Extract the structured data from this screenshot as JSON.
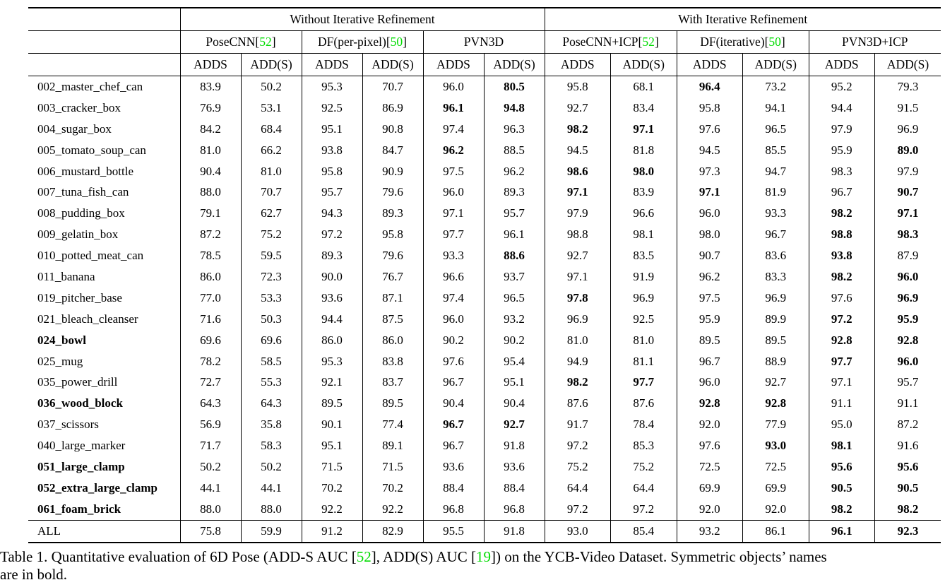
{
  "colors": {
    "citation_green": "#00DC00"
  },
  "table": {
    "groups": [
      {
        "label": "Without Iterative Refinement"
      },
      {
        "label": "With Iterative Refinement"
      }
    ],
    "methods": [
      {
        "name": "PoseCNN",
        "cite": "52"
      },
      {
        "name": "DF(per-pixel)",
        "cite": "50"
      },
      {
        "name": "PVN3D",
        "cite": null
      },
      {
        "name": "PoseCNN+ICP",
        "cite": "52"
      },
      {
        "name": "DF(iterative)",
        "cite": "50"
      },
      {
        "name": "PVN3D+ICP",
        "cite": null
      }
    ],
    "metric_headers": [
      "ADDS",
      "ADD(S)"
    ],
    "rows": [
      {
        "name": "002_master_chef_can",
        "bold_name": false,
        "values": [
          "83.9",
          "50.2",
          "95.3",
          "70.7",
          "96.0",
          "80.5",
          "95.8",
          "68.1",
          "96.4",
          "73.2",
          "95.2",
          "79.3"
        ],
        "bold": [
          5,
          8
        ]
      },
      {
        "name": "003_cracker_box",
        "bold_name": false,
        "values": [
          "76.9",
          "53.1",
          "92.5",
          "86.9",
          "96.1",
          "94.8",
          "92.7",
          "83.4",
          "95.8",
          "94.1",
          "94.4",
          "91.5"
        ],
        "bold": [
          4,
          5
        ]
      },
      {
        "name": "004_sugar_box",
        "bold_name": false,
        "values": [
          "84.2",
          "68.4",
          "95.1",
          "90.8",
          "97.4",
          "96.3",
          "98.2",
          "97.1",
          "97.6",
          "96.5",
          "97.9",
          "96.9"
        ],
        "bold": [
          6,
          7
        ]
      },
      {
        "name": "005_tomato_soup_can",
        "bold_name": false,
        "values": [
          "81.0",
          "66.2",
          "93.8",
          "84.7",
          "96.2",
          "88.5",
          "94.5",
          "81.8",
          "94.5",
          "85.5",
          "95.9",
          "89.0"
        ],
        "bold": [
          4,
          11
        ]
      },
      {
        "name": "006_mustard_bottle",
        "bold_name": false,
        "values": [
          "90.4",
          "81.0",
          "95.8",
          "90.9",
          "97.5",
          "96.2",
          "98.6",
          "98.0",
          "97.3",
          "94.7",
          "98.3",
          "97.9"
        ],
        "bold": [
          6,
          7
        ]
      },
      {
        "name": "007_tuna_fish_can",
        "bold_name": false,
        "values": [
          "88.0",
          "70.7",
          "95.7",
          "79.6",
          "96.0",
          "89.3",
          "97.1",
          "83.9",
          "97.1",
          "81.9",
          "96.7",
          "90.7"
        ],
        "bold": [
          6,
          8,
          11
        ]
      },
      {
        "name": "008_pudding_box",
        "bold_name": false,
        "values": [
          "79.1",
          "62.7",
          "94.3",
          "89.3",
          "97.1",
          "95.7",
          "97.9",
          "96.6",
          "96.0",
          "93.3",
          "98.2",
          "97.1"
        ],
        "bold": [
          10,
          11
        ]
      },
      {
        "name": "009_gelatin_box",
        "bold_name": false,
        "values": [
          "87.2",
          "75.2",
          "97.2",
          "95.8",
          "97.7",
          "96.1",
          "98.8",
          "98.1",
          "98.0",
          "96.7",
          "98.8",
          "98.3"
        ],
        "bold": [
          10,
          11
        ]
      },
      {
        "name": "010_potted_meat_can",
        "bold_name": false,
        "values": [
          "78.5",
          "59.5",
          "89.3",
          "79.6",
          "93.3",
          "88.6",
          "92.7",
          "83.5",
          "90.7",
          "83.6",
          "93.8",
          "87.9"
        ],
        "bold": [
          5,
          10
        ]
      },
      {
        "name": "011_banana",
        "bold_name": false,
        "values": [
          "86.0",
          "72.3",
          "90.0",
          "76.7",
          "96.6",
          "93.7",
          "97.1",
          "91.9",
          "96.2",
          "83.3",
          "98.2",
          "96.0"
        ],
        "bold": [
          10,
          11
        ]
      },
      {
        "name": "019_pitcher_base",
        "bold_name": false,
        "values": [
          "77.0",
          "53.3",
          "93.6",
          "87.1",
          "97.4",
          "96.5",
          "97.8",
          "96.9",
          "97.5",
          "96.9",
          "97.6",
          "96.9"
        ],
        "bold": [
          6,
          11
        ]
      },
      {
        "name": "021_bleach_cleanser",
        "bold_name": false,
        "values": [
          "71.6",
          "50.3",
          "94.4",
          "87.5",
          "96.0",
          "93.2",
          "96.9",
          "92.5",
          "95.9",
          "89.9",
          "97.2",
          "95.9"
        ],
        "bold": [
          10,
          11
        ]
      },
      {
        "name": "024_bowl",
        "bold_name": true,
        "values": [
          "69.6",
          "69.6",
          "86.0",
          "86.0",
          "90.2",
          "90.2",
          "81.0",
          "81.0",
          "89.5",
          "89.5",
          "92.8",
          "92.8"
        ],
        "bold": [
          10,
          11
        ]
      },
      {
        "name": "025_mug",
        "bold_name": false,
        "values": [
          "78.2",
          "58.5",
          "95.3",
          "83.8",
          "97.6",
          "95.4",
          "94.9",
          "81.1",
          "96.7",
          "88.9",
          "97.7",
          "96.0"
        ],
        "bold": [
          10,
          11
        ]
      },
      {
        "name": "035_power_drill",
        "bold_name": false,
        "values": [
          "72.7",
          "55.3",
          "92.1",
          "83.7",
          "96.7",
          "95.1",
          "98.2",
          "97.7",
          "96.0",
          "92.7",
          "97.1",
          "95.7"
        ],
        "bold": [
          6,
          7
        ]
      },
      {
        "name": "036_wood_block",
        "bold_name": true,
        "values": [
          "64.3",
          "64.3",
          "89.5",
          "89.5",
          "90.4",
          "90.4",
          "87.6",
          "87.6",
          "92.8",
          "92.8",
          "91.1",
          "91.1"
        ],
        "bold": [
          8,
          9
        ]
      },
      {
        "name": "037_scissors",
        "bold_name": false,
        "values": [
          "56.9",
          "35.8",
          "90.1",
          "77.4",
          "96.7",
          "92.7",
          "91.7",
          "78.4",
          "92.0",
          "77.9",
          "95.0",
          "87.2"
        ],
        "bold": [
          4,
          5
        ]
      },
      {
        "name": "040_large_marker",
        "bold_name": false,
        "values": [
          "71.7",
          "58.3",
          "95.1",
          "89.1",
          "96.7",
          "91.8",
          "97.2",
          "85.3",
          "97.6",
          "93.0",
          "98.1",
          "91.6"
        ],
        "bold": [
          9,
          10
        ]
      },
      {
        "name": "051_large_clamp",
        "bold_name": true,
        "values": [
          "50.2",
          "50.2",
          "71.5",
          "71.5",
          "93.6",
          "93.6",
          "75.2",
          "75.2",
          "72.5",
          "72.5",
          "95.6",
          "95.6"
        ],
        "bold": [
          10,
          11
        ]
      },
      {
        "name": "052_extra_large_clamp",
        "bold_name": true,
        "values": [
          "44.1",
          "44.1",
          "70.2",
          "70.2",
          "88.4",
          "88.4",
          "64.4",
          "64.4",
          "69.9",
          "69.9",
          "90.5",
          "90.5"
        ],
        "bold": [
          10,
          11
        ]
      },
      {
        "name": "061_foam_brick",
        "bold_name": true,
        "values": [
          "88.0",
          "88.0",
          "92.2",
          "92.2",
          "96.8",
          "96.8",
          "97.2",
          "97.2",
          "92.0",
          "92.0",
          "98.2",
          "98.2"
        ],
        "bold": [
          10,
          11
        ]
      }
    ],
    "footer_row": {
      "name": "ALL",
      "bold_name": false,
      "values": [
        "75.8",
        "59.9",
        "91.2",
        "82.9",
        "95.5",
        "91.8",
        "93.0",
        "85.4",
        "93.2",
        "86.1",
        "96.1",
        "92.3"
      ],
      "bold": [
        10,
        11
      ]
    }
  },
  "caption": {
    "line1_pre": "Table 1. Quantitative evaluation of 6D Pose (ADD-S AUC [",
    "cite1": "52",
    "line1_mid": "], ADD(S) AUC [",
    "cite2": "19",
    "line1_post": "]) on the YCB-Video Dataset. Symmetric objects’ names",
    "line2": "are in bold."
  }
}
